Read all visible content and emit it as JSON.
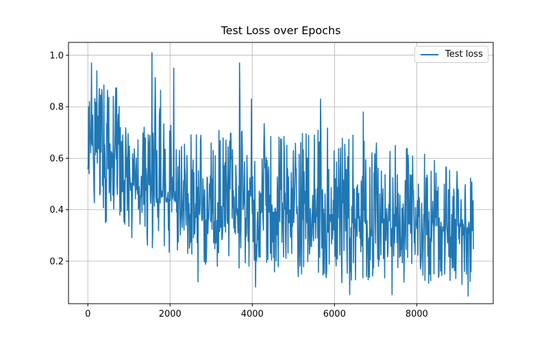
{
  "chart_data": {
    "type": "line",
    "title": "Test Loss over Epochs",
    "xlabel": "",
    "ylabel": "",
    "xlim": [
      -470,
      9860
    ],
    "ylim": [
      0.035,
      1.05
    ],
    "xticks": [
      0,
      2000,
      4000,
      6000,
      8000
    ],
    "xtick_labels": [
      "0",
      "2000",
      "4000",
      "6000",
      "8000"
    ],
    "yticks": [
      0.2,
      0.4,
      0.6,
      0.8,
      1.0
    ],
    "ytick_labels": [
      "0.2",
      "0.4",
      "0.6",
      "0.8",
      "1.0"
    ],
    "grid": true,
    "legend_position": "top-right",
    "series": [
      {
        "name": "Test loss",
        "color": "#1f77b4",
        "x_start": 0,
        "x_end": 9380,
        "n_points": 9380,
        "trend": [
          [
            0,
            0.6
          ],
          [
            100,
            0.64
          ],
          [
            300,
            0.62
          ],
          [
            600,
            0.6
          ],
          [
            800,
            0.55
          ],
          [
            1000,
            0.5
          ],
          [
            1500,
            0.47
          ],
          [
            2000,
            0.44
          ],
          [
            3000,
            0.42
          ],
          [
            4000,
            0.4
          ],
          [
            5000,
            0.38
          ],
          [
            6000,
            0.37
          ],
          [
            7000,
            0.36
          ],
          [
            8000,
            0.345
          ],
          [
            9380,
            0.33
          ]
        ],
        "upper_envelope": [
          [
            0,
            0.83
          ],
          [
            150,
            0.97
          ],
          [
            400,
            0.93
          ],
          [
            700,
            0.92
          ],
          [
            900,
            0.8
          ],
          [
            1100,
            0.75
          ],
          [
            1500,
            0.78
          ],
          [
            1600,
            1.01
          ],
          [
            2000,
            0.8
          ],
          [
            2500,
            0.75
          ],
          [
            3000,
            0.76
          ],
          [
            3600,
            0.74
          ],
          [
            3690,
            0.97
          ],
          [
            4000,
            0.83
          ],
          [
            4500,
            0.75
          ],
          [
            5000,
            0.72
          ],
          [
            5660,
            0.83
          ],
          [
            6000,
            0.7
          ],
          [
            6500,
            0.75
          ],
          [
            7000,
            0.7
          ],
          [
            8000,
            0.68
          ],
          [
            9000,
            0.62
          ],
          [
            9380,
            0.55
          ]
        ],
        "lower_envelope": [
          [
            0,
            0.44
          ],
          [
            200,
            0.37
          ],
          [
            400,
            0.3
          ],
          [
            700,
            0.33
          ],
          [
            1000,
            0.24
          ],
          [
            1200,
            0.27
          ],
          [
            1500,
            0.22
          ],
          [
            2000,
            0.2
          ],
          [
            2800,
            0.14
          ],
          [
            3200,
            0.15
          ],
          [
            4000,
            0.12
          ],
          [
            4500,
            0.13
          ],
          [
            5000,
            0.11
          ],
          [
            6500,
            0.08
          ],
          [
            7500,
            0.09
          ],
          [
            8500,
            0.08
          ],
          [
            9000,
            0.07
          ],
          [
            9380,
            0.09
          ]
        ],
        "notable_points": [
          [
            20,
            0.8
          ],
          [
            90,
            0.97
          ],
          [
            220,
            0.94
          ],
          [
            1560,
            1.01
          ],
          [
            2090,
            0.95
          ],
          [
            3690,
            0.97
          ],
          [
            3980,
            0.83
          ],
          [
            5660,
            0.83
          ],
          [
            6700,
            0.78
          ],
          [
            2680,
            0.12
          ],
          [
            4080,
            0.1
          ],
          [
            6370,
            0.07
          ],
          [
            7400,
            0.07
          ],
          [
            9250,
            0.065
          ]
        ]
      }
    ]
  }
}
